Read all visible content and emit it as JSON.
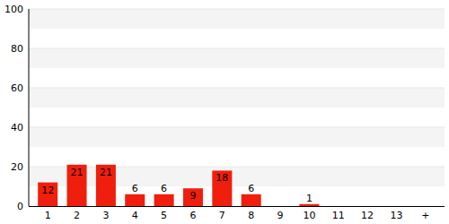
{
  "chart_data": {
    "type": "bar",
    "categories": [
      "1",
      "2",
      "3",
      "4",
      "5",
      "6",
      "7",
      "8",
      "9",
      "10",
      "11",
      "12",
      "13",
      "+"
    ],
    "values": [
      12,
      21,
      21,
      6,
      6,
      9,
      18,
      6,
      0,
      1,
      0,
      0,
      0,
      0
    ],
    "value_labels": [
      "12",
      "21",
      "21",
      "6",
      "6",
      "9",
      "18",
      "6",
      null,
      "1",
      null,
      null,
      null,
      null
    ],
    "color": "#f01e0c",
    "ylim": [
      0,
      100
    ],
    "yticks": [
      0,
      20,
      40,
      60,
      80,
      100
    ],
    "grid": true,
    "data_labels": true
  }
}
